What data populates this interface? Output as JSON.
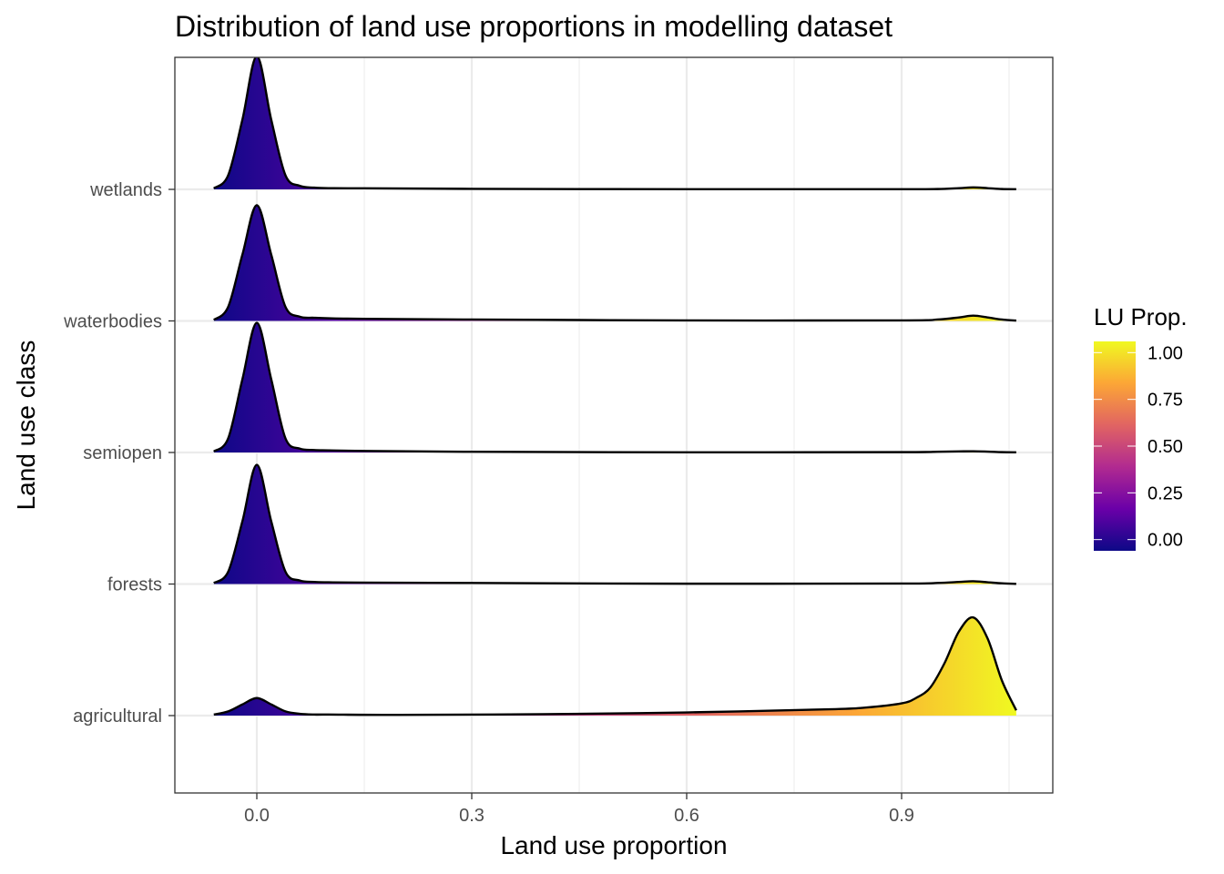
{
  "chart_data": {
    "type": "ridgeline",
    "title": "Distribution of land use proportions in modelling dataset",
    "xlabel": "Land use proportion",
    "ylabel": "Land use class",
    "xlim": [
      -0.06,
      1.06
    ],
    "x_ticks": [
      "0.0",
      "0.3",
      "0.6",
      "0.9"
    ],
    "x_tick_values": [
      0.0,
      0.3,
      0.6,
      0.9
    ],
    "categories": [
      "agricultural",
      "forests",
      "semiopen",
      "waterbodies",
      "wetlands"
    ],
    "grid": true,
    "legend": {
      "title": "LU Prop.",
      "placement": "right",
      "labels": [
        "1.00",
        "0.75",
        "0.50",
        "0.25",
        "0.00"
      ],
      "label_values": [
        1.0,
        0.75,
        0.5,
        0.25,
        0.0
      ],
      "range": [
        -0.06,
        1.06
      ],
      "colors": [
        "#0d0887",
        "#6a00a8",
        "#b12a90",
        "#e16462",
        "#fca636",
        "#f0f921"
      ]
    },
    "series": [
      {
        "category": "wetlands",
        "x": [
          -0.06,
          -0.04,
          -0.02,
          0.0,
          0.02,
          0.04,
          0.06,
          0.08,
          0.1,
          0.15,
          0.3,
          0.6,
          0.9,
          0.95,
          0.98,
          1.0,
          1.02,
          1.04,
          1.06
        ],
        "density": [
          0.3,
          4,
          20,
          38,
          20,
          4,
          1,
          0.5,
          0.35,
          0.3,
          0.15,
          0.05,
          0.05,
          0.1,
          0.35,
          0.55,
          0.35,
          0.1,
          0.05
        ]
      },
      {
        "category": "waterbodies",
        "x": [
          -0.06,
          -0.04,
          -0.02,
          0.0,
          0.02,
          0.04,
          0.06,
          0.08,
          0.1,
          0.15,
          0.3,
          0.6,
          0.9,
          0.95,
          0.98,
          1.0,
          1.02,
          1.04,
          1.06
        ],
        "density": [
          0.3,
          4,
          19,
          33,
          19,
          4,
          1.2,
          0.9,
          0.75,
          0.6,
          0.4,
          0.15,
          0.15,
          0.4,
          1.0,
          1.5,
          1.0,
          0.4,
          0.1
        ]
      },
      {
        "category": "semiopen",
        "x": [
          -0.06,
          -0.04,
          -0.02,
          0.0,
          0.02,
          0.04,
          0.06,
          0.08,
          0.1,
          0.15,
          0.3,
          0.6,
          0.9,
          0.95,
          0.98,
          1.0,
          1.02,
          1.04,
          1.06
        ],
        "density": [
          0.3,
          4,
          21,
          37,
          21,
          4,
          1.1,
          0.7,
          0.6,
          0.45,
          0.2,
          0.05,
          0.1,
          0.2,
          0.3,
          0.35,
          0.25,
          0.1,
          0.05
        ]
      },
      {
        "category": "forests",
        "x": [
          -0.06,
          -0.04,
          -0.02,
          0.0,
          0.02,
          0.04,
          0.06,
          0.08,
          0.1,
          0.15,
          0.3,
          0.6,
          0.9,
          0.95,
          0.98,
          1.0,
          1.02,
          1.04,
          1.06
        ],
        "density": [
          0.3,
          3.5,
          18,
          34,
          18,
          3.5,
          1.0,
          0.6,
          0.5,
          0.4,
          0.3,
          0.1,
          0.15,
          0.3,
          0.6,
          0.8,
          0.5,
          0.2,
          0.05
        ]
      },
      {
        "category": "agricultural",
        "x": [
          -0.06,
          -0.04,
          -0.02,
          0.0,
          0.02,
          0.04,
          0.06,
          0.08,
          0.1,
          0.2,
          0.4,
          0.6,
          0.8,
          0.85,
          0.9,
          0.92,
          0.94,
          0.96,
          0.98,
          1.0,
          1.02,
          1.04,
          1.06
        ],
        "density": [
          0.3,
          1.2,
          3.2,
          5.0,
          3.2,
          1.2,
          0.5,
          0.3,
          0.3,
          0.2,
          0.4,
          0.9,
          1.8,
          2.3,
          3.5,
          5,
          8,
          15,
          24,
          28,
          22,
          10,
          1.5
        ]
      }
    ]
  }
}
